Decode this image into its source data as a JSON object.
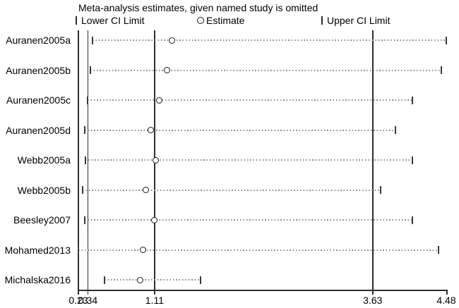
{
  "title": "Meta-analysis estimates, given named study is omitted",
  "legend": {
    "items": [
      {
        "icon": "ci-tick-icon",
        "label": "Lower CI Limit"
      },
      {
        "icon": "estimate-circle-icon",
        "label": "Estimate"
      },
      {
        "icon": "ci-tick-icon",
        "label": "Upper CI Limit"
      }
    ]
  },
  "chart_data": {
    "type": "scatter",
    "subtype": "leave-one-out-sensitivity-forest-plot",
    "title": "Meta-analysis estimates, given named study is omitted",
    "studies": [
      "Auranen2005a",
      "Auranen2005b",
      "Auranen2005c",
      "Auranen2005d",
      "Webb2005a",
      "Webb2005b",
      "Beesley2007",
      "Mohamed2013",
      "Michalska2016"
    ],
    "series": [
      {
        "name": "Lower CI Limit",
        "values": [
          0.39,
          0.37,
          0.34,
          0.3,
          0.31,
          0.28,
          0.3,
          0.23,
          0.53
        ]
      },
      {
        "name": "Estimate",
        "values": [
          1.31,
          1.25,
          1.16,
          1.07,
          1.12,
          1.01,
          1.11,
          0.98,
          0.94
        ]
      },
      {
        "name": "Upper CI Limit",
        "values": [
          4.48,
          4.42,
          4.09,
          3.89,
          4.09,
          3.72,
          4.09,
          4.39,
          1.64
        ]
      }
    ],
    "overall_reference_lines": {
      "lower": 0.34,
      "estimate": 1.11,
      "upper": 3.63
    },
    "x_axis": {
      "range": [
        0.23,
        4.48
      ],
      "tick_values": [
        0.23,
        0.34,
        1.11,
        3.63,
        4.48
      ],
      "tick_labels": [
        "0.23",
        "0.34",
        "1.11",
        "3.63",
        "4.48"
      ]
    },
    "grid": false,
    "legend_position": "top"
  },
  "colors": {
    "background": "#ffffff",
    "text": "#000000",
    "axis": "#2e2e2e",
    "ci_dotted_line": "#8c8c8c",
    "marker_outline": "#1a1a1a"
  }
}
